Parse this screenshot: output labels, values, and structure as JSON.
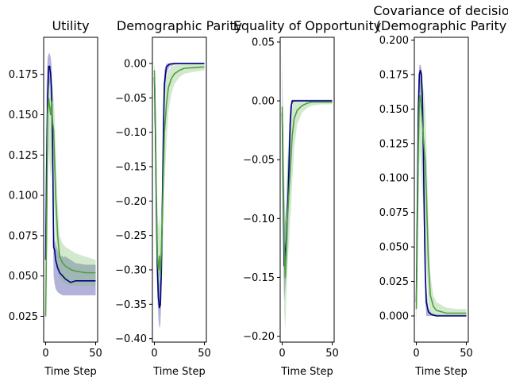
{
  "figure": {
    "background": "#ffffff"
  },
  "colors": {
    "series_a_line": "#00007f",
    "series_a_band": "#3f3fa6",
    "series_b_line": "#4f9f3f",
    "series_b_band": "#7fbf6f"
  },
  "chart_data": [
    {
      "type": "line",
      "title": "Utility",
      "xlabel": "Time Step",
      "ylabel": "",
      "xlim": [
        -2,
        52
      ],
      "ylim": [
        0.009,
        0.198
      ],
      "xticks": [
        0,
        50
      ],
      "yticks": [
        0.025,
        0.05,
        0.075,
        0.1,
        0.125,
        0.15,
        0.175
      ],
      "ytick_labels": [
        "0.025",
        "0.050",
        "0.075",
        "0.100",
        "0.125",
        "0.150",
        "0.175"
      ],
      "series": [
        {
          "color_key": "series_a",
          "x": [
            0,
            1,
            2,
            3,
            4,
            5,
            6,
            7,
            8,
            9,
            10,
            12,
            14,
            17,
            20,
            25,
            30,
            40,
            50
          ],
          "y": [
            0.06,
            0.12,
            0.16,
            0.18,
            0.18,
            0.175,
            0.165,
            0.128,
            0.068,
            0.066,
            0.06,
            0.055,
            0.052,
            0.05,
            0.048,
            0.046,
            0.047,
            0.047,
            0.047
          ],
          "lower": [
            0.02,
            0.05,
            0.12,
            0.165,
            0.17,
            0.16,
            0.145,
            0.1,
            0.05,
            0.045,
            0.042,
            0.04,
            0.039,
            0.038,
            0.038,
            0.038,
            0.038,
            0.038,
            0.038
          ],
          "upper": [
            0.1,
            0.17,
            0.185,
            0.188,
            0.188,
            0.186,
            0.18,
            0.155,
            0.085,
            0.072,
            0.07,
            0.066,
            0.063,
            0.062,
            0.062,
            0.06,
            0.058,
            0.057,
            0.057
          ]
        },
        {
          "color_key": "series_b",
          "x": [
            0,
            1,
            2,
            3,
            4,
            5,
            6,
            7,
            8,
            9,
            10,
            12,
            14,
            17,
            20,
            25,
            30,
            40,
            50
          ],
          "y": [
            0.025,
            0.08,
            0.15,
            0.16,
            0.155,
            0.15,
            0.158,
            0.145,
            0.14,
            0.12,
            0.1,
            0.075,
            0.062,
            0.058,
            0.056,
            0.054,
            0.053,
            0.052,
            0.052
          ],
          "lower": [
            0.02,
            0.05,
            0.11,
            0.13,
            0.12,
            0.11,
            0.12,
            0.11,
            0.1,
            0.085,
            0.07,
            0.055,
            0.048,
            0.046,
            0.045,
            0.044,
            0.044,
            0.044,
            0.044
          ],
          "upper": [
            0.03,
            0.11,
            0.17,
            0.175,
            0.172,
            0.168,
            0.172,
            0.165,
            0.16,
            0.15,
            0.13,
            0.095,
            0.075,
            0.07,
            0.068,
            0.066,
            0.064,
            0.062,
            0.06
          ]
        }
      ]
    },
    {
      "type": "line",
      "title": "Demographic Parity",
      "xlabel": "Time Step",
      "ylabel": "",
      "xlim": [
        -2,
        52
      ],
      "ylim": [
        -0.405,
        0.038
      ],
      "xticks": [
        0,
        50
      ],
      "yticks": [
        0.0,
        -0.05,
        -0.1,
        -0.15,
        -0.2,
        -0.25,
        -0.3,
        -0.35,
        -0.4
      ],
      "ytick_labels": [
        "0.00",
        "−0.05",
        "−0.10",
        "−0.15",
        "−0.20",
        "−0.25",
        "−0.30",
        "−0.35",
        "−0.40"
      ],
      "series": [
        {
          "color_key": "series_a",
          "x": [
            0,
            1,
            2,
            3,
            4,
            5,
            6,
            7,
            8,
            9,
            10,
            12,
            15,
            20,
            30,
            50
          ],
          "y": [
            -0.02,
            -0.1,
            -0.22,
            -0.3,
            -0.34,
            -0.355,
            -0.35,
            -0.3,
            -0.2,
            -0.1,
            -0.03,
            -0.005,
            -0.001,
            0.0,
            0.0,
            0.0
          ],
          "lower": [
            -0.05,
            -0.16,
            -0.28,
            -0.34,
            -0.37,
            -0.385,
            -0.38,
            -0.34,
            -0.25,
            -0.15,
            -0.06,
            -0.015,
            -0.005,
            -0.002,
            -0.001,
            -0.001
          ],
          "upper": [
            0.0,
            -0.04,
            -0.16,
            -0.25,
            -0.3,
            -0.32,
            -0.31,
            -0.26,
            -0.15,
            -0.05,
            -0.01,
            0.0,
            0.0,
            0.0,
            0.0,
            0.0
          ]
        },
        {
          "color_key": "series_b",
          "x": [
            0,
            1,
            2,
            3,
            4,
            5,
            6,
            7,
            8,
            9,
            10,
            12,
            14,
            17,
            20,
            25,
            30,
            40,
            50
          ],
          "y": [
            -0.01,
            -0.08,
            -0.2,
            -0.28,
            -0.3,
            -0.28,
            -0.31,
            -0.27,
            -0.22,
            -0.16,
            -0.1,
            -0.06,
            -0.035,
            -0.022,
            -0.015,
            -0.01,
            -0.007,
            -0.006,
            -0.005
          ],
          "lower": [
            -0.03,
            -0.13,
            -0.27,
            -0.34,
            -0.35,
            -0.33,
            -0.37,
            -0.33,
            -0.29,
            -0.25,
            -0.18,
            -0.12,
            -0.07,
            -0.045,
            -0.03,
            -0.02,
            -0.015,
            -0.012,
            -0.01
          ],
          "upper": [
            0.0,
            -0.03,
            -0.13,
            -0.21,
            -0.24,
            -0.22,
            -0.25,
            -0.2,
            -0.15,
            -0.08,
            -0.04,
            -0.02,
            -0.01,
            -0.005,
            -0.003,
            -0.002,
            -0.001,
            -0.001,
            -0.001
          ]
        }
      ]
    },
    {
      "type": "line",
      "title": "Equality of Opportunity",
      "xlabel": "Time Step",
      "ylabel": "",
      "xlim": [
        -2,
        52
      ],
      "ylim": [
        -0.205,
        0.054
      ],
      "xticks": [
        0,
        50
      ],
      "yticks": [
        0.05,
        0.0,
        -0.05,
        -0.1,
        -0.15,
        -0.2
      ],
      "ytick_labels": [
        "0.05",
        "0.00",
        "−0.05",
        "−0.10",
        "−0.15",
        "−0.20"
      ],
      "series": [
        {
          "color_key": "series_a",
          "x": [
            0,
            1,
            2,
            3,
            4,
            5,
            6,
            7,
            8,
            9,
            10,
            12,
            15,
            20,
            30,
            50
          ],
          "y": [
            -0.01,
            -0.08,
            -0.14,
            -0.13,
            -0.12,
            -0.1,
            -0.08,
            -0.05,
            -0.02,
            -0.005,
            0.0,
            0.0,
            0.0,
            0.0,
            0.0,
            0.0
          ],
          "lower": [
            -0.05,
            -0.13,
            -0.17,
            -0.16,
            -0.15,
            -0.13,
            -0.11,
            -0.08,
            -0.04,
            -0.015,
            -0.003,
            -0.001,
            0.0,
            0.0,
            0.0,
            0.0
          ],
          "upper": [
            0.04,
            -0.03,
            -0.11,
            -0.1,
            -0.09,
            -0.07,
            -0.05,
            -0.02,
            -0.005,
            0.0,
            0.001,
            0.001,
            0.001,
            0.001,
            0.001,
            0.001
          ]
        },
        {
          "color_key": "series_b",
          "x": [
            0,
            1,
            2,
            3,
            4,
            5,
            6,
            7,
            8,
            9,
            10,
            12,
            15,
            20,
            25,
            30,
            40,
            50
          ],
          "y": [
            -0.005,
            -0.06,
            -0.12,
            -0.15,
            -0.13,
            -0.1,
            -0.09,
            -0.075,
            -0.06,
            -0.045,
            -0.03,
            -0.015,
            -0.008,
            -0.004,
            -0.002,
            -0.001,
            -0.001,
            -0.001
          ],
          "lower": [
            -0.02,
            -0.12,
            -0.18,
            -0.195,
            -0.17,
            -0.15,
            -0.13,
            -0.12,
            -0.1,
            -0.09,
            -0.07,
            -0.04,
            -0.02,
            -0.01,
            -0.006,
            -0.004,
            -0.003,
            -0.003
          ],
          "upper": [
            0.005,
            -0.01,
            -0.06,
            -0.1,
            -0.09,
            -0.05,
            -0.04,
            -0.03,
            -0.02,
            -0.01,
            -0.005,
            0.0,
            0.0,
            0.0,
            0.0,
            0.0,
            0.0,
            0.0
          ]
        }
      ]
    },
    {
      "type": "line",
      "title": "Covariance of decisio",
      "subtitle": "(Demographic Parity",
      "xlabel": "Time Step",
      "ylabel": "",
      "xlim": [
        -2,
        52
      ],
      "ylim": [
        -0.019,
        0.202
      ],
      "xticks": [
        0,
        50
      ],
      "yticks": [
        0.0,
        0.025,
        0.05,
        0.075,
        0.1,
        0.125,
        0.15,
        0.175,
        0.2
      ],
      "ytick_labels": [
        "0.000",
        "0.025",
        "0.050",
        "0.075",
        "0.100",
        "0.125",
        "0.150",
        "0.175",
        "0.200"
      ],
      "series": [
        {
          "color_key": "series_a",
          "x": [
            0,
            1,
            2,
            3,
            4,
            5,
            6,
            7,
            8,
            9,
            10,
            12,
            15,
            20,
            30,
            50
          ],
          "y": [
            0.01,
            0.08,
            0.15,
            0.175,
            0.178,
            0.175,
            0.16,
            0.12,
            0.07,
            0.03,
            0.01,
            0.003,
            0.001,
            0.0,
            0.0,
            0.0
          ],
          "lower": [
            -0.008,
            0.04,
            0.12,
            0.155,
            0.162,
            0.16,
            0.14,
            0.09,
            0.04,
            0.01,
            0.0,
            0.0,
            0.0,
            0.0,
            0.0,
            0.0
          ],
          "upper": [
            0.03,
            0.12,
            0.17,
            0.182,
            0.182,
            0.18,
            0.175,
            0.15,
            0.1,
            0.05,
            0.02,
            0.006,
            0.002,
            0.001,
            0.001,
            0.001
          ]
        },
        {
          "color_key": "series_b",
          "x": [
            0,
            1,
            2,
            3,
            4,
            5,
            6,
            7,
            8,
            9,
            10,
            12,
            14,
            17,
            20,
            25,
            30,
            40,
            50
          ],
          "y": [
            0.005,
            0.06,
            0.12,
            0.155,
            0.16,
            0.15,
            0.14,
            0.13,
            0.12,
            0.11,
            0.09,
            0.04,
            0.015,
            0.007,
            0.004,
            0.003,
            0.002,
            0.002,
            0.002
          ],
          "lower": [
            0.0,
            0.02,
            0.08,
            0.11,
            0.12,
            0.1,
            0.09,
            0.08,
            0.06,
            0.05,
            0.04,
            0.01,
            0.002,
            0.0,
            0.0,
            0.0,
            0.0,
            0.0,
            0.0
          ],
          "upper": [
            0.01,
            0.1,
            0.15,
            0.17,
            0.175,
            0.175,
            0.17,
            0.165,
            0.16,
            0.15,
            0.13,
            0.07,
            0.03,
            0.015,
            0.01,
            0.008,
            0.006,
            0.005,
            0.005
          ]
        }
      ]
    }
  ]
}
